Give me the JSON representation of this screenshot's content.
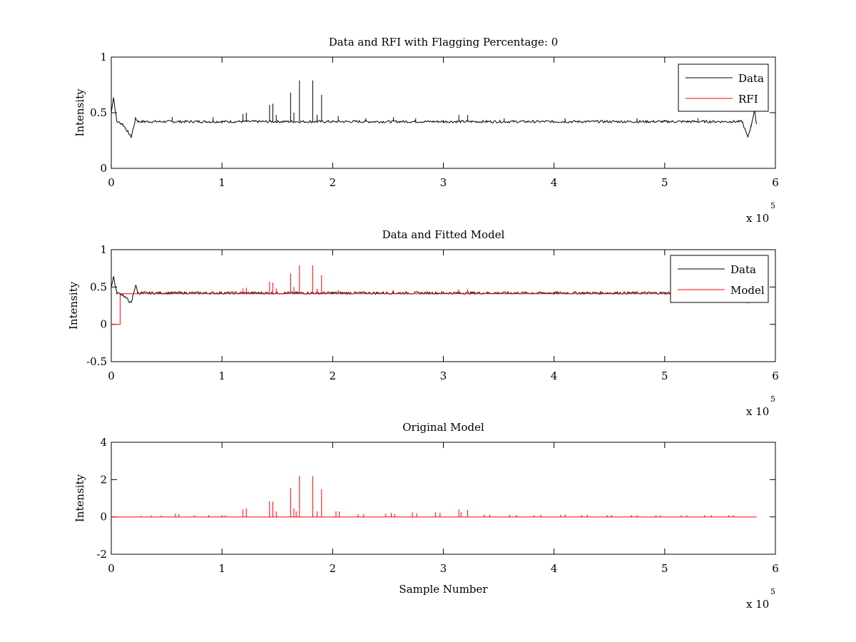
{
  "chart_data": [
    {
      "type": "line",
      "title": "Data and RFI with Flagging Percentage: 0",
      "xlabel": "",
      "ylabel": "Intensity",
      "xlim": [
        0,
        6
      ],
      "x_multiplier": "x 10",
      "x_exponent": "5",
      "ylim": [
        0,
        1
      ],
      "xticks": [
        "0",
        "1",
        "2",
        "3",
        "4",
        "5",
        "6"
      ],
      "yticks": [
        {
          "v": 0,
          "label": "0"
        },
        {
          "v": 0.5,
          "label": "0.5"
        },
        {
          "v": 1,
          "label": "1"
        }
      ],
      "grid": false,
      "legend_position": "top-right",
      "baseline": 0.42,
      "series": [
        {
          "name": "Data",
          "color": "#000000",
          "x": [
            0,
            0.02,
            0.05,
            0.1,
            0.15,
            0.18,
            0.22,
            0.24,
            0.3,
            1.0,
            2.0,
            3.0,
            4.0,
            5.0,
            5.6,
            5.7,
            5.75,
            5.78,
            5.81,
            5.83
          ],
          "y": [
            0.5,
            0.64,
            0.42,
            0.4,
            0.33,
            0.28,
            0.45,
            0.42,
            0.42,
            0.42,
            0.42,
            0.42,
            0.42,
            0.42,
            0.42,
            0.42,
            0.28,
            0.38,
            0.52,
            0.4
          ],
          "spikes": [
            {
              "x": 0.55,
              "y": 0.46
            },
            {
              "x": 0.92,
              "y": 0.46
            },
            {
              "x": 1.19,
              "y": 0.49
            },
            {
              "x": 1.22,
              "y": 0.5
            },
            {
              "x": 1.43,
              "y": 0.57
            },
            {
              "x": 1.46,
              "y": 0.58
            },
            {
              "x": 1.49,
              "y": 0.48
            },
            {
              "x": 1.62,
              "y": 0.68
            },
            {
              "x": 1.65,
              "y": 0.5
            },
            {
              "x": 1.7,
              "y": 0.79
            },
            {
              "x": 1.82,
              "y": 0.79
            },
            {
              "x": 1.86,
              "y": 0.48
            },
            {
              "x": 1.9,
              "y": 0.66
            },
            {
              "x": 2.05,
              "y": 0.47
            },
            {
              "x": 2.3,
              "y": 0.45
            },
            {
              "x": 2.55,
              "y": 0.46
            },
            {
              "x": 2.75,
              "y": 0.45
            },
            {
              "x": 3.14,
              "y": 0.48
            },
            {
              "x": 3.22,
              "y": 0.48
            },
            {
              "x": 3.55,
              "y": 0.45
            },
            {
              "x": 4.1,
              "y": 0.45
            },
            {
              "x": 4.75,
              "y": 0.45
            },
            {
              "x": 5.3,
              "y": 0.45
            }
          ]
        },
        {
          "name": "RFI",
          "color": "#ff0000",
          "x": [],
          "y": []
        }
      ]
    },
    {
      "type": "line",
      "title": "Data and Fitted Model",
      "xlabel": "",
      "ylabel": "Intensity",
      "xlim": [
        0,
        6
      ],
      "x_multiplier": "x 10",
      "x_exponent": "5",
      "ylim": [
        -0.5,
        1
      ],
      "xticks": [
        "0",
        "1",
        "2",
        "3",
        "4",
        "5",
        "6"
      ],
      "yticks": [
        {
          "v": -0.5,
          "label": "-0.5"
        },
        {
          "v": 0,
          "label": "0"
        },
        {
          "v": 0.5,
          "label": "0.5"
        },
        {
          "v": 1,
          "label": "1"
        }
      ],
      "grid": false,
      "legend_position": "top-right",
      "baseline": 0.42,
      "series": [
        {
          "name": "Data",
          "color": "#000000",
          "x": [
            0,
            0.02,
            0.05,
            0.1,
            0.15,
            0.18,
            0.22,
            0.24,
            0.3,
            1.0,
            2.0,
            3.0,
            4.0,
            5.0,
            5.6,
            5.7,
            5.75,
            5.78,
            5.81,
            5.83
          ],
          "y": [
            0.5,
            0.64,
            0.42,
            0.4,
            0.33,
            0.28,
            0.53,
            0.42,
            0.42,
            0.42,
            0.42,
            0.42,
            0.42,
            0.42,
            0.42,
            0.42,
            0.28,
            0.38,
            0.52,
            0.4
          ]
        },
        {
          "name": "Model",
          "color": "#ff0000",
          "x": [
            0,
            0.08,
            0.08,
            0.12,
            0.5,
            1.0,
            2.0,
            3.0,
            4.0,
            5.0,
            5.83
          ],
          "y": [
            0,
            0,
            0.41,
            0.41,
            0.41,
            0.41,
            0.41,
            0.41,
            0.41,
            0.41,
            0.41
          ],
          "spikes": [
            {
              "x": 1.19,
              "y": 0.48
            },
            {
              "x": 1.22,
              "y": 0.49
            },
            {
              "x": 1.43,
              "y": 0.57
            },
            {
              "x": 1.46,
              "y": 0.56
            },
            {
              "x": 1.49,
              "y": 0.48
            },
            {
              "x": 1.62,
              "y": 0.68
            },
            {
              "x": 1.65,
              "y": 0.5
            },
            {
              "x": 1.7,
              "y": 0.79
            },
            {
              "x": 1.82,
              "y": 0.79
            },
            {
              "x": 1.86,
              "y": 0.48
            },
            {
              "x": 1.9,
              "y": 0.66
            },
            {
              "x": 2.05,
              "y": 0.46
            },
            {
              "x": 2.55,
              "y": 0.46
            },
            {
              "x": 3.14,
              "y": 0.47
            },
            {
              "x": 3.22,
              "y": 0.47
            }
          ]
        }
      ]
    },
    {
      "type": "line",
      "title": "Original Model",
      "xlabel": "Sample Number",
      "ylabel": "Intensity",
      "xlim": [
        0,
        6
      ],
      "x_multiplier": "x 10",
      "x_exponent": "5",
      "ylim": [
        -2,
        4
      ],
      "xticks": [
        "0",
        "1",
        "2",
        "3",
        "4",
        "5",
        "6"
      ],
      "yticks": [
        {
          "v": -2,
          "label": "-2"
        },
        {
          "v": 0,
          "label": "0"
        },
        {
          "v": 2,
          "label": "2"
        },
        {
          "v": 4,
          "label": "4"
        }
      ],
      "grid": false,
      "baseline": 0,
      "series": [
        {
          "color": "#ff0000",
          "x": [
            0,
            5.83
          ],
          "y": [
            0,
            0
          ],
          "spikes": [
            {
              "x": 0.27,
              "y": 0.05
            },
            {
              "x": 0.36,
              "y": 0.08
            },
            {
              "x": 0.45,
              "y": 0.07
            },
            {
              "x": 0.58,
              "y": 0.18
            },
            {
              "x": 0.61,
              "y": 0.15
            },
            {
              "x": 0.75,
              "y": 0.08
            },
            {
              "x": 0.88,
              "y": 0.1
            },
            {
              "x": 1.0,
              "y": 0.1
            },
            {
              "x": 1.03,
              "y": 0.08
            },
            {
              "x": 1.19,
              "y": 0.4
            },
            {
              "x": 1.22,
              "y": 0.45
            },
            {
              "x": 1.43,
              "y": 0.85
            },
            {
              "x": 1.46,
              "y": 0.82
            },
            {
              "x": 1.49,
              "y": 0.3
            },
            {
              "x": 1.62,
              "y": 1.55
            },
            {
              "x": 1.65,
              "y": 0.45
            },
            {
              "x": 1.67,
              "y": 0.3
            },
            {
              "x": 1.7,
              "y": 2.2
            },
            {
              "x": 1.82,
              "y": 2.18
            },
            {
              "x": 1.86,
              "y": 0.3
            },
            {
              "x": 1.9,
              "y": 1.48
            },
            {
              "x": 2.03,
              "y": 0.3
            },
            {
              "x": 2.06,
              "y": 0.3
            },
            {
              "x": 2.23,
              "y": 0.15
            },
            {
              "x": 2.28,
              "y": 0.15
            },
            {
              "x": 2.48,
              "y": 0.18
            },
            {
              "x": 2.53,
              "y": 0.22
            },
            {
              "x": 2.56,
              "y": 0.15
            },
            {
              "x": 2.72,
              "y": 0.25
            },
            {
              "x": 2.76,
              "y": 0.2
            },
            {
              "x": 2.93,
              "y": 0.25
            },
            {
              "x": 2.97,
              "y": 0.22
            },
            {
              "x": 3.14,
              "y": 0.4
            },
            {
              "x": 3.16,
              "y": 0.25
            },
            {
              "x": 3.22,
              "y": 0.38
            },
            {
              "x": 3.37,
              "y": 0.12
            },
            {
              "x": 3.42,
              "y": 0.12
            },
            {
              "x": 3.6,
              "y": 0.12
            },
            {
              "x": 3.66,
              "y": 0.1
            },
            {
              "x": 3.82,
              "y": 0.1
            },
            {
              "x": 3.88,
              "y": 0.12
            },
            {
              "x": 4.06,
              "y": 0.12
            },
            {
              "x": 4.1,
              "y": 0.14
            },
            {
              "x": 4.25,
              "y": 0.1
            },
            {
              "x": 4.3,
              "y": 0.12
            },
            {
              "x": 4.48,
              "y": 0.1
            },
            {
              "x": 4.52,
              "y": 0.1
            },
            {
              "x": 4.7,
              "y": 0.1
            },
            {
              "x": 4.75,
              "y": 0.1
            },
            {
              "x": 4.92,
              "y": 0.08
            },
            {
              "x": 4.96,
              "y": 0.08
            },
            {
              "x": 5.15,
              "y": 0.08
            },
            {
              "x": 5.2,
              "y": 0.08
            },
            {
              "x": 5.36,
              "y": 0.1
            },
            {
              "x": 5.42,
              "y": 0.1
            },
            {
              "x": 5.58,
              "y": 0.1
            },
            {
              "x": 5.62,
              "y": 0.1
            }
          ]
        }
      ]
    }
  ]
}
